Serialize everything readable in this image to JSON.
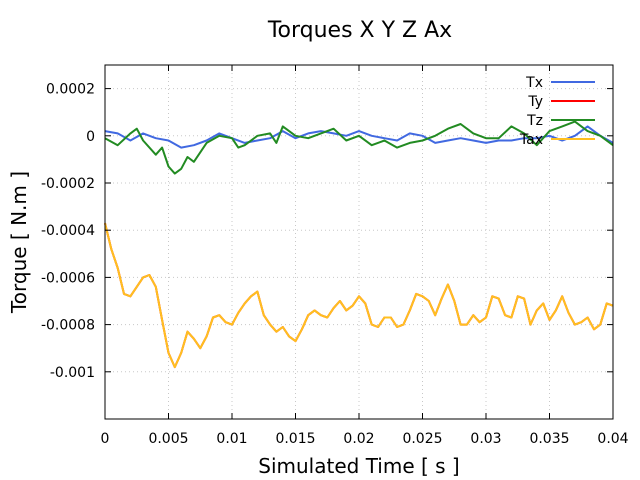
{
  "chart_data": {
    "type": "line",
    "title": "Torques X Y Z Ax",
    "xlabel": "Simulated Time [ s ]",
    "ylabel": "Torque [ N.m ]",
    "xlim": [
      0,
      0.04
    ],
    "ylim": [
      -0.0012,
      0.0003
    ],
    "grid": true,
    "legend_position": "top-right",
    "x_ticks": [
      {
        "value": 0,
        "label": "0"
      },
      {
        "value": 0.005,
        "label": "0.005"
      },
      {
        "value": 0.01,
        "label": "0.01"
      },
      {
        "value": 0.015,
        "label": "0.015"
      },
      {
        "value": 0.02,
        "label": "0.02"
      },
      {
        "value": 0.025,
        "label": "0.025"
      },
      {
        "value": 0.03,
        "label": "0.03"
      },
      {
        "value": 0.035,
        "label": "0.035"
      },
      {
        "value": 0.04,
        "label": "0.04"
      }
    ],
    "y_ticks": [
      {
        "value": 0.0002,
        "label": "0.0002"
      },
      {
        "value": 0,
        "label": "0"
      },
      {
        "value": -0.0002,
        "label": "-0.0002"
      },
      {
        "value": -0.0004,
        "label": "-0.0004"
      },
      {
        "value": -0.0006,
        "label": "-0.0006"
      },
      {
        "value": -0.0008,
        "label": "-0.0008"
      },
      {
        "value": -0.001,
        "label": "-0.001"
      }
    ],
    "series": [
      {
        "name": "Tx",
        "color": "#4169e1",
        "x": [
          0,
          0.001,
          0.002,
          0.003,
          0.004,
          0.005,
          0.006,
          0.007,
          0.008,
          0.009,
          0.01,
          0.011,
          0.012,
          0.013,
          0.014,
          0.015,
          0.016,
          0.017,
          0.018,
          0.019,
          0.02,
          0.021,
          0.022,
          0.023,
          0.024,
          0.025,
          0.026,
          0.027,
          0.028,
          0.029,
          0.03,
          0.031,
          0.032,
          0.033,
          0.034,
          0.035,
          0.036,
          0.037,
          0.038,
          0.039,
          0.04
        ],
        "y": [
          2e-05,
          1e-05,
          -2e-05,
          1e-05,
          -1e-05,
          -2e-05,
          -5e-05,
          -4e-05,
          -2e-05,
          1e-05,
          -1e-05,
          -3e-05,
          -2e-05,
          -1e-05,
          2e-05,
          -1e-05,
          1e-05,
          2e-05,
          1e-05,
          0.0,
          2e-05,
          0.0,
          -1e-05,
          -2e-05,
          1e-05,
          0.0,
          -3e-05,
          -2e-05,
          -1e-05,
          -2e-05,
          -3e-05,
          -2e-05,
          -2e-05,
          -1e-05,
          -1e-05,
          0.0,
          -2e-05,
          0.0,
          4e-05,
          0.0,
          -3e-05
        ]
      },
      {
        "name": "Ty",
        "color": "#ff0000",
        "x": [
          0,
          0.0005,
          0.001,
          0.0015,
          0.002,
          0.0025,
          0.003,
          0.0035,
          0.004,
          0.0045,
          0.005,
          0.0055,
          0.006,
          0.0065,
          0.007,
          0.0075,
          0.008,
          0.0085,
          0.009,
          0.0095,
          0.01,
          0.0105,
          0.011,
          0.0115,
          0.012,
          0.0125,
          0.013,
          0.0135,
          0.014,
          0.0145,
          0.015,
          0.0155,
          0.016,
          0.0165,
          0.017,
          0.0175,
          0.018,
          0.0185,
          0.019,
          0.0195,
          0.02,
          0.0205,
          0.021,
          0.0215,
          0.022,
          0.0225,
          0.023,
          0.0235,
          0.024,
          0.0245,
          0.025,
          0.0255,
          0.026,
          0.0265,
          0.027,
          0.0275,
          0.028,
          0.0285,
          0.029,
          0.0295,
          0.03,
          0.0305,
          0.031,
          0.0315,
          0.032,
          0.0325,
          0.033,
          0.0335,
          0.034,
          0.0345,
          0.035,
          0.0355,
          0.036,
          0.0365,
          0.037,
          0.0375,
          0.038,
          0.0385,
          0.039,
          0.0395,
          0.04
        ],
        "y": [
          -0.00037,
          -0.00048,
          -0.00056,
          -0.00067,
          -0.00068,
          -0.00064,
          -0.0006,
          -0.00059,
          -0.00064,
          -0.00078,
          -0.00092,
          -0.00098,
          -0.00092,
          -0.00083,
          -0.00086,
          -0.0009,
          -0.00085,
          -0.00077,
          -0.00076,
          -0.00079,
          -0.0008,
          -0.00075,
          -0.00071,
          -0.00068,
          -0.00066,
          -0.00076,
          -0.0008,
          -0.00083,
          -0.00081,
          -0.00085,
          -0.00087,
          -0.00082,
          -0.00076,
          -0.00074,
          -0.00076,
          -0.00077,
          -0.00073,
          -0.0007,
          -0.00074,
          -0.00072,
          -0.00068,
          -0.00071,
          -0.0008,
          -0.00081,
          -0.00077,
          -0.00077,
          -0.00081,
          -0.0008,
          -0.00074,
          -0.00067,
          -0.00068,
          -0.0007,
          -0.00076,
          -0.00069,
          -0.00063,
          -0.0007,
          -0.0008,
          -0.0008,
          -0.00076,
          -0.00079,
          -0.00077,
          -0.00068,
          -0.00069,
          -0.00076,
          -0.00077,
          -0.00068,
          -0.00069,
          -0.0008,
          -0.00074,
          -0.00071,
          -0.00078,
          -0.00074,
          -0.00068,
          -0.00075,
          -0.0008,
          -0.00079,
          -0.00077,
          -0.00082,
          -0.0008,
          -0.00071,
          -0.00072
        ]
      },
      {
        "name": "Tz",
        "color": "#228b22",
        "x": [
          0,
          0.001,
          0.002,
          0.0025,
          0.003,
          0.004,
          0.0045,
          0.005,
          0.0055,
          0.006,
          0.0065,
          0.007,
          0.008,
          0.009,
          0.01,
          0.0105,
          0.011,
          0.012,
          0.013,
          0.0135,
          0.014,
          0.015,
          0.016,
          0.017,
          0.018,
          0.019,
          0.02,
          0.021,
          0.022,
          0.023,
          0.024,
          0.025,
          0.026,
          0.027,
          0.028,
          0.029,
          0.03,
          0.031,
          0.032,
          0.033,
          0.034,
          0.035,
          0.036,
          0.037,
          0.038,
          0.039,
          0.04
        ],
        "y": [
          -1e-05,
          -4e-05,
          1e-05,
          3e-05,
          -2e-05,
          -8e-05,
          -5e-05,
          -0.00013,
          -0.00016,
          -0.00014,
          -9e-05,
          -0.00011,
          -3e-05,
          0.0,
          -1e-05,
          -5e-05,
          -4e-05,
          0.0,
          1e-05,
          -3e-05,
          4e-05,
          0.0,
          -1e-05,
          1e-05,
          3e-05,
          -2e-05,
          0.0,
          -4e-05,
          -2e-05,
          -5e-05,
          -3e-05,
          -2e-05,
          0.0,
          3e-05,
          5e-05,
          1e-05,
          -1e-05,
          -1e-05,
          4e-05,
          1e-05,
          -4e-05,
          2e-05,
          4e-05,
          6e-05,
          2e-05,
          0.0,
          -4e-05
        ]
      },
      {
        "name": "Tax",
        "color": "#ffc020",
        "x": [
          0,
          0.0005,
          0.001,
          0.0015,
          0.002,
          0.0025,
          0.003,
          0.0035,
          0.004,
          0.0045,
          0.005,
          0.0055,
          0.006,
          0.0065,
          0.007,
          0.0075,
          0.008,
          0.0085,
          0.009,
          0.0095,
          0.01,
          0.0105,
          0.011,
          0.0115,
          0.012,
          0.0125,
          0.013,
          0.0135,
          0.014,
          0.0145,
          0.015,
          0.0155,
          0.016,
          0.0165,
          0.017,
          0.0175,
          0.018,
          0.0185,
          0.019,
          0.0195,
          0.02,
          0.0205,
          0.021,
          0.0215,
          0.022,
          0.0225,
          0.023,
          0.0235,
          0.024,
          0.0245,
          0.025,
          0.0255,
          0.026,
          0.0265,
          0.027,
          0.0275,
          0.028,
          0.0285,
          0.029,
          0.0295,
          0.03,
          0.0305,
          0.031,
          0.0315,
          0.032,
          0.0325,
          0.033,
          0.0335,
          0.034,
          0.0345,
          0.035,
          0.0355,
          0.036,
          0.0365,
          0.037,
          0.0375,
          0.038,
          0.0385,
          0.039,
          0.0395,
          0.04
        ],
        "y": [
          -0.00037,
          -0.00048,
          -0.00056,
          -0.00067,
          -0.00068,
          -0.00064,
          -0.0006,
          -0.00059,
          -0.00064,
          -0.00078,
          -0.00092,
          -0.00098,
          -0.00092,
          -0.00083,
          -0.00086,
          -0.0009,
          -0.00085,
          -0.00077,
          -0.00076,
          -0.00079,
          -0.0008,
          -0.00075,
          -0.00071,
          -0.00068,
          -0.00066,
          -0.00076,
          -0.0008,
          -0.00083,
          -0.00081,
          -0.00085,
          -0.00087,
          -0.00082,
          -0.00076,
          -0.00074,
          -0.00076,
          -0.00077,
          -0.00073,
          -0.0007,
          -0.00074,
          -0.00072,
          -0.00068,
          -0.00071,
          -0.0008,
          -0.00081,
          -0.00077,
          -0.00077,
          -0.00081,
          -0.0008,
          -0.00074,
          -0.00067,
          -0.00068,
          -0.0007,
          -0.00076,
          -0.00069,
          -0.00063,
          -0.0007,
          -0.0008,
          -0.0008,
          -0.00076,
          -0.00079,
          -0.00077,
          -0.00068,
          -0.00069,
          -0.00076,
          -0.00077,
          -0.00068,
          -0.00069,
          -0.0008,
          -0.00074,
          -0.00071,
          -0.00078,
          -0.00074,
          -0.00068,
          -0.00075,
          -0.0008,
          -0.00079,
          -0.00077,
          -0.00082,
          -0.0008,
          -0.00071,
          -0.00072
        ]
      }
    ]
  }
}
